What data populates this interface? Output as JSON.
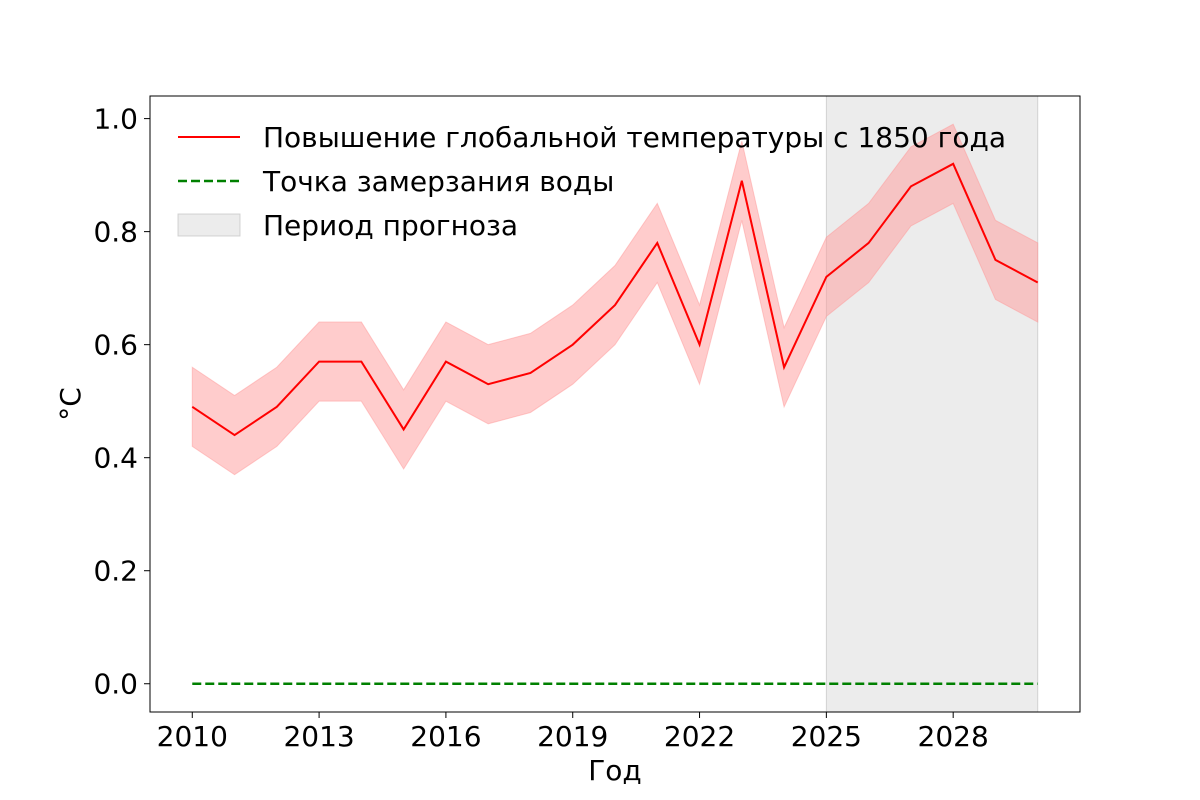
{
  "chart_data": {
    "type": "line",
    "xlabel": "Год",
    "ylabel": "°C",
    "xlim": [
      2009.0,
      2031.0
    ],
    "ylim": [
      -0.05,
      1.04
    ],
    "x_ticks": [
      2010,
      2013,
      2016,
      2019,
      2022,
      2025,
      2028
    ],
    "x_tick_labels": [
      "2010",
      "2013",
      "2016",
      "2019",
      "2022",
      "2025",
      "2028"
    ],
    "y_ticks": [
      0.0,
      0.2,
      0.4,
      0.6,
      0.8,
      1.0
    ],
    "y_tick_labels": [
      "0.0",
      "0.2",
      "0.4",
      "0.6",
      "0.8",
      "1.0"
    ],
    "grid": false,
    "legend_position": "top-left",
    "x": [
      2010,
      2011,
      2012,
      2013,
      2014,
      2015,
      2016,
      2017,
      2018,
      2019,
      2020,
      2021,
      2022,
      2023,
      2024,
      2025,
      2026,
      2027,
      2028,
      2029,
      2030
    ],
    "series": [
      {
        "name": "Повышение глобальной температуры с 1850 года",
        "color": "#ff0000",
        "style": "solid",
        "values": [
          0.49,
          0.44,
          0.49,
          0.57,
          0.57,
          0.45,
          0.57,
          0.53,
          0.55,
          0.6,
          0.67,
          0.78,
          0.6,
          0.89,
          0.56,
          0.72,
          0.78,
          0.88,
          0.92,
          0.75,
          0.71
        ],
        "band_offset": 0.07,
        "band_color": "#ff9999"
      },
      {
        "name": "Точка замерзания воды",
        "color": "#008000",
        "style": "dashed",
        "values": [
          0,
          0,
          0,
          0,
          0,
          0,
          0,
          0,
          0,
          0,
          0,
          0,
          0,
          0,
          0,
          0,
          0,
          0,
          0,
          0,
          0
        ]
      }
    ],
    "shaded_regions": [
      {
        "name": "Период прогноза",
        "x_start": 2025,
        "x_end": 2030,
        "color": "#d9d9d9"
      }
    ]
  }
}
